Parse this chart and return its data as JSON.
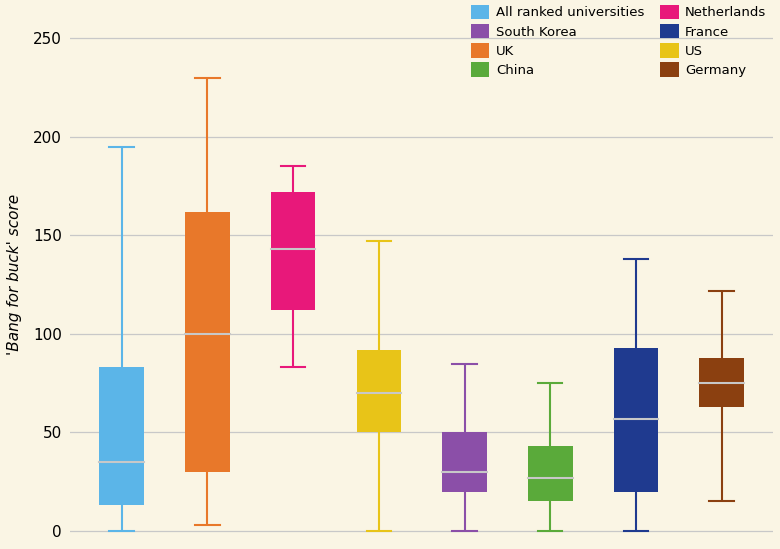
{
  "ylabel": "'Bang for buck' score",
  "background_color": "#faf5e4",
  "grid_color": "#c8c8c8",
  "ylim": [
    -5,
    265
  ],
  "yticks": [
    0,
    50,
    100,
    150,
    200,
    250
  ],
  "colors": [
    "#5bb5e8",
    "#e8782a",
    "#e8187a",
    "#e8c418",
    "#8b4fa8",
    "#5aaa3a",
    "#1f3a8f",
    "#8b4010"
  ],
  "legend_labels": [
    "All ranked universities",
    "UK",
    "Netherlands",
    "US",
    "South Korea",
    "China",
    "France",
    "Germany"
  ],
  "legend_colors": [
    "#5bb5e8",
    "#e8782a",
    "#e8187a",
    "#e8c418",
    "#8b4fa8",
    "#5aaa3a",
    "#1f3a8f",
    "#8b4010"
  ],
  "boxes": [
    {
      "whislo": 0,
      "q1": 13,
      "med": 35,
      "q3": 83,
      "whishi": 195
    },
    {
      "whislo": 3,
      "q1": 30,
      "med": 100,
      "q3": 162,
      "whishi": 230
    },
    {
      "whislo": 83,
      "q1": 112,
      "med": 143,
      "q3": 172,
      "whishi": 185
    },
    {
      "whislo": 0,
      "q1": 50,
      "med": 70,
      "q3": 92,
      "whishi": 147
    },
    {
      "whislo": 0,
      "q1": 20,
      "med": 30,
      "q3": 50,
      "whishi": 85
    },
    {
      "whislo": 0,
      "q1": 15,
      "med": 27,
      "q3": 43,
      "whishi": 75
    },
    {
      "whislo": 0,
      "q1": 20,
      "med": 57,
      "q3": 93,
      "whishi": 138
    },
    {
      "whislo": 15,
      "q1": 63,
      "med": 75,
      "q3": 88,
      "whishi": 122
    }
  ]
}
